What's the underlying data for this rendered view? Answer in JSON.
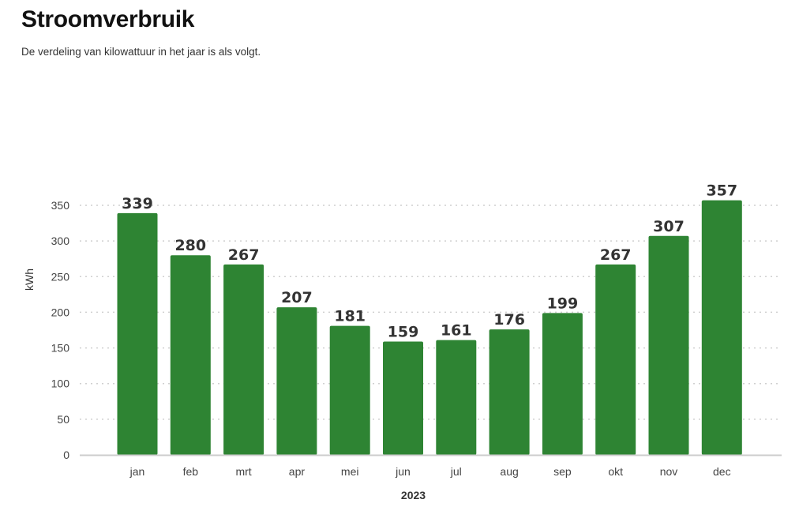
{
  "header": {
    "title": "Stroomverbruik",
    "subtitle": "De verdeling van kilowattuur in het jaar is als volgt."
  },
  "colors": {
    "bar": "#2e8433",
    "grid": "#cfcfcf",
    "axis": "#cccccc"
  },
  "chart_data": {
    "type": "bar",
    "categories": [
      "jan",
      "feb",
      "mrt",
      "apr",
      "mei",
      "jun",
      "jul",
      "aug",
      "sep",
      "okt",
      "nov",
      "dec"
    ],
    "values": [
      339,
      280,
      267,
      207,
      181,
      159,
      161,
      176,
      199,
      267,
      307,
      357
    ],
    "title": "Stroomverbruik",
    "subtitle": "De verdeling van kilowattuur in het jaar is als volgt.",
    "xlabel": "2023",
    "ylabel": "kWh",
    "ylim": [
      0,
      357
    ],
    "yticks": [
      0,
      50,
      100,
      150,
      200,
      250,
      300,
      350
    ],
    "grid": true,
    "data_labels": true,
    "legend": "none"
  }
}
